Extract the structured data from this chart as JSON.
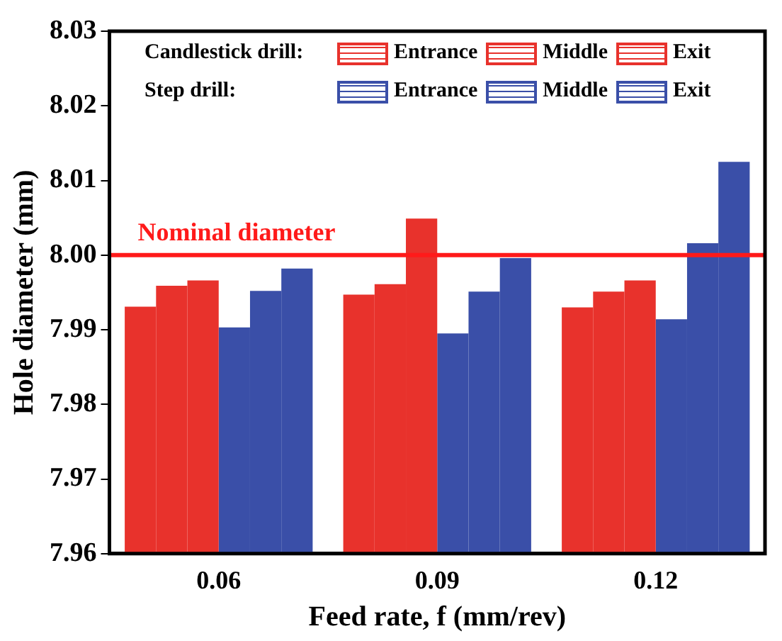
{
  "chart_data": {
    "type": "bar",
    "xlabel": "Feed rate, f (mm/rev)",
    "ylabel": "Hole diameter (mm)",
    "categories": [
      "0.06",
      "0.09",
      "0.12"
    ],
    "series": [
      {
        "name": "Entrance",
        "color": "#e8322c",
        "values": [
          7.9931,
          7.9947,
          7.993
        ]
      },
      {
        "name": "Middle",
        "color": "#e8322c",
        "values": [
          7.9959,
          7.9961,
          7.9951
        ]
      },
      {
        "name": "Exit",
        "color": "#e8322c",
        "values": [
          7.9966,
          8.0049,
          7.9966
        ]
      },
      {
        "name": "Entrance",
        "color": "#3a4fa8",
        "values": [
          7.9903,
          7.9895,
          7.9914
        ]
      },
      {
        "name": "Middle",
        "color": "#3a4fa8",
        "values": [
          7.9952,
          7.9951,
          8.0016
        ]
      },
      {
        "name": "Exit",
        "color": "#3a4fa8",
        "values": [
          7.9982,
          7.9996,
          8.0125
        ]
      }
    ],
    "ylim": [
      7.96,
      8.03
    ],
    "yticks": [
      {
        "value": 7.96,
        "label": "7.96"
      },
      {
        "value": 7.97,
        "label": "7.97"
      },
      {
        "value": 7.98,
        "label": "7.98"
      },
      {
        "value": 7.99,
        "label": "7.99"
      },
      {
        "value": 8.0,
        "label": "8.00"
      },
      {
        "value": 8.01,
        "label": "8.01"
      },
      {
        "value": 8.02,
        "label": "8.02"
      },
      {
        "value": 8.03,
        "label": "8.03"
      }
    ],
    "ref_lines": [
      {
        "axis": "y",
        "value": 8.0,
        "label": "Nominal diameter",
        "color": "#ff1a1a"
      }
    ],
    "annotations": [
      "Candlestick drill:",
      "Step drill:"
    ],
    "legend": "top",
    "grid": false
  }
}
